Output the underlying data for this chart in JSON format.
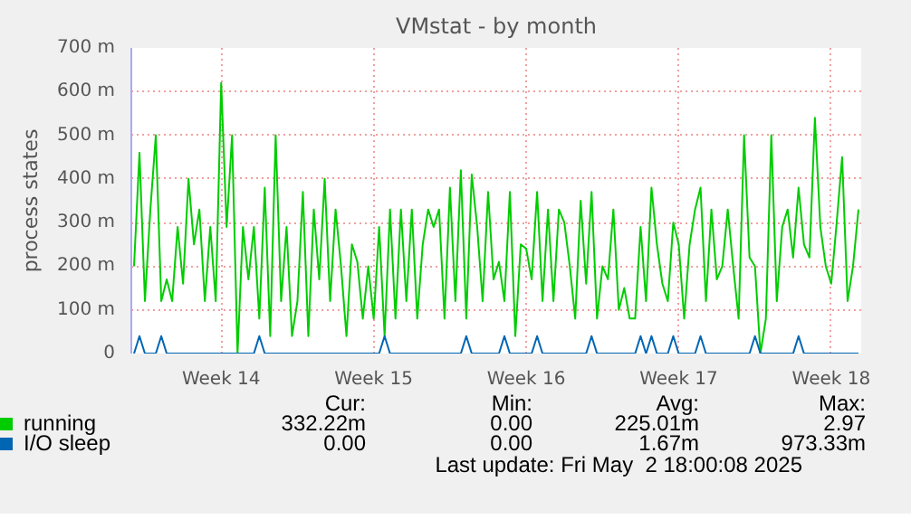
{
  "chart_data": {
    "type": "line",
    "title": "VMstat - by month",
    "ylabel": "process states",
    "categories": [
      null,
      null,
      null,
      null,
      null,
      null,
      null,
      null,
      null,
      null,
      null,
      null,
      null,
      null,
      null,
      null,
      "Week 14",
      null,
      null,
      null,
      null,
      null,
      null,
      null,
      null,
      null,
      null,
      null,
      null,
      null,
      null,
      null,
      null,
      null,
      null,
      null,
      null,
      null,
      null,
      null,
      null,
      null,
      null,
      null,
      "Week 15",
      null,
      null,
      null,
      null,
      null,
      null,
      null,
      null,
      null,
      null,
      null,
      null,
      null,
      null,
      null,
      null,
      null,
      null,
      null,
      null,
      null,
      null,
      null,
      null,
      null,
      null,
      null,
      "Week 16",
      null,
      null,
      null,
      null,
      null,
      null,
      null,
      null,
      null,
      null,
      null,
      null,
      null,
      null,
      null,
      null,
      null,
      null,
      null,
      null,
      null,
      null,
      null,
      null,
      null,
      null,
      null,
      "Week 17",
      null,
      null,
      null,
      null,
      null,
      null,
      null,
      null,
      null,
      null,
      null,
      null,
      null,
      null,
      null,
      null,
      null,
      null,
      null,
      null,
      null,
      null,
      null,
      null,
      null,
      null,
      null,
      "Week 18",
      null,
      null,
      null,
      null,
      null
    ],
    "ylim": [
      0,
      700
    ],
    "yticks": [
      0,
      {
        "value": 100,
        "label": "100 m"
      },
      {
        "value": 200,
        "label": "200 m"
      },
      {
        "value": 300,
        "label": "300 m"
      },
      {
        "value": 400,
        "label": "400 m"
      },
      {
        "value": 500,
        "label": "500 m"
      },
      {
        "value": 600,
        "label": "600 m"
      },
      {
        "value": 700,
        "label": "700 m"
      }
    ],
    "grid": true,
    "legend": "bottom",
    "series": [
      {
        "name": "running",
        "color": "#00cc00",
        "values": [
          200,
          460,
          120,
          330,
          500,
          120,
          170,
          120,
          290,
          160,
          400,
          250,
          330,
          120,
          290,
          120,
          620,
          290,
          500,
          0,
          290,
          170,
          290,
          80,
          380,
          40,
          500,
          120,
          290,
          40,
          120,
          370,
          40,
          330,
          170,
          400,
          120,
          330,
          200,
          40,
          250,
          210,
          80,
          200,
          80,
          290,
          40,
          330,
          80,
          330,
          120,
          330,
          80,
          250,
          330,
          290,
          330,
          80,
          380,
          120,
          420,
          80,
          410,
          290,
          120,
          370,
          170,
          210,
          120,
          370,
          40,
          250,
          240,
          170,
          370,
          120,
          330,
          120,
          330,
          300,
          200,
          80,
          350,
          160,
          370,
          80,
          200,
          170,
          330,
          100,
          150,
          80,
          80,
          290,
          120,
          380,
          250,
          160,
          120,
          300,
          250,
          80,
          250,
          330,
          380,
          120,
          330,
          170,
          200,
          330,
          200,
          80,
          500,
          220,
          200,
          0,
          80,
          500,
          120,
          290,
          330,
          220,
          380,
          250,
          220,
          540,
          290,
          200,
          160,
          300,
          450,
          120,
          200,
          330
        ]
      },
      {
        "name": "I/O sleep",
        "color": "#0066b3",
        "values": [
          0,
          40,
          0,
          0,
          0,
          40,
          0,
          0,
          0,
          0,
          0,
          0,
          0,
          0,
          0,
          0,
          0,
          0,
          0,
          0,
          0,
          0,
          0,
          40,
          0,
          0,
          0,
          0,
          0,
          0,
          0,
          0,
          0,
          0,
          0,
          0,
          0,
          0,
          0,
          0,
          0,
          0,
          0,
          0,
          0,
          0,
          40,
          0,
          0,
          0,
          0,
          0,
          0,
          0,
          0,
          0,
          0,
          0,
          0,
          0,
          0,
          40,
          0,
          0,
          0,
          0,
          0,
          0,
          40,
          0,
          0,
          0,
          0,
          0,
          40,
          0,
          0,
          0,
          0,
          0,
          0,
          0,
          0,
          0,
          40,
          0,
          0,
          0,
          0,
          0,
          0,
          0,
          0,
          40,
          0,
          40,
          0,
          0,
          0,
          40,
          0,
          0,
          0,
          0,
          40,
          0,
          0,
          0,
          0,
          0,
          0,
          0,
          0,
          0,
          40,
          0,
          0,
          0,
          0,
          0,
          0,
          0,
          40,
          0,
          0,
          0,
          0,
          0,
          0,
          0,
          0,
          0,
          0,
          0
        ]
      }
    ],
    "annotations": [
      "Cur:",
      "Min:",
      "Avg:",
      "Max:",
      "332.22m",
      "0.00",
      "225.01m",
      "2.97",
      "0.00",
      "0.00",
      "1.67m",
      "973.33m",
      "Last update: Fri May  2 18:00:08 2025"
    ]
  }
}
